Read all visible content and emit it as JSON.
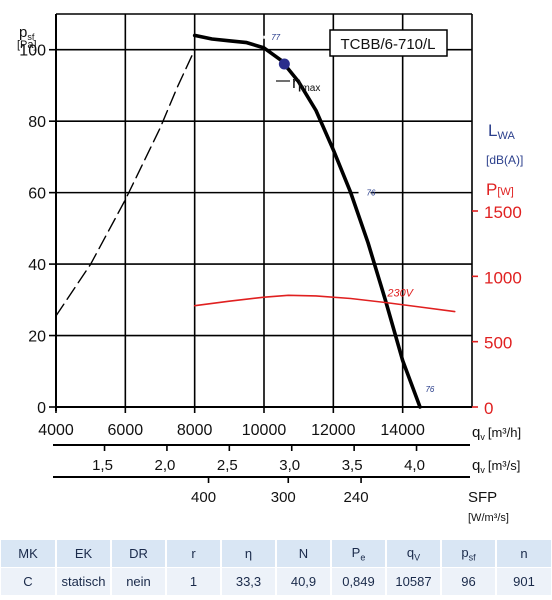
{
  "chart_data": {
    "type": "line",
    "title": "TCBB/6-710/L",
    "y_axis_left": {
      "symbol": "p",
      "subscript": "sf",
      "unit": "[Pa]",
      "ticks": [
        0,
        20,
        40,
        60,
        80,
        100
      ],
      "ylim": [
        0,
        110
      ]
    },
    "y_axis_right_sound": {
      "label": "L",
      "subscript": "WA",
      "unit": "[dB(A)]"
    },
    "y_axis_right_power": {
      "label": "P",
      "unit": "[W]",
      "ticks": [
        0,
        500,
        1000,
        1500
      ],
      "color": "#e02020"
    },
    "x_axis_flow_m3h": {
      "symbol": "q",
      "subscript": "v",
      "unit": "[m³/h]",
      "ticks": [
        4000,
        6000,
        8000,
        10000,
        12000,
        14000
      ],
      "xlim": [
        4000,
        16000
      ]
    },
    "x_axis_flow_m3s": {
      "symbol": "q",
      "subscript": "v",
      "unit": "[m³/s]",
      "ticks": [
        "1,5",
        "2,0",
        "2,5",
        "3,0",
        "3,5",
        "4,0"
      ],
      "values": [
        1.5,
        2.0,
        2.5,
        3.0,
        3.5,
        4.0
      ]
    },
    "x_axis_sfp": {
      "label": "SFP",
      "unit": "[W/m³/s]",
      "ticks": [
        "400",
        "300",
        "240"
      ],
      "at_flow_m3h": [
        8400,
        10700,
        12800
      ]
    },
    "series": [
      {
        "kind": "pressure-unstable",
        "style": "dashed",
        "color": "#000000",
        "x": [
          4000,
          5000,
          6000,
          7000,
          7500,
          8000
        ],
        "y": [
          25.5,
          40,
          58,
          78,
          89.5,
          100
        ]
      },
      {
        "kind": "pressure",
        "style": "solid",
        "color": "#000000",
        "x": [
          8000,
          8500,
          9000,
          9500,
          10000,
          10500,
          11000,
          11500,
          12000,
          12500,
          13000,
          13500,
          14000,
          14500
        ],
        "y": [
          104,
          103,
          102.5,
          102,
          100.5,
          97,
          91,
          83,
          72,
          60,
          46,
          30,
          13,
          0
        ]
      },
      {
        "name": "230V",
        "kind": "power",
        "style": "solid",
        "color": "#e02020",
        "x": [
          8000,
          9000,
          10000,
          10700,
          11500,
          12500,
          13500,
          14500,
          15500
        ],
        "y": [
          775,
          810,
          840,
          855,
          850,
          830,
          800,
          765,
          730
        ]
      }
    ],
    "eta_max": {
      "label": "η",
      "sub": "max",
      "x": 10587,
      "y": 96,
      "color": "#2b2e8c"
    },
    "sound_labels": [
      {
        "text": "77",
        "x": 10150,
        "y": 103.5
      },
      {
        "text": "76",
        "x": 12900,
        "y": 60
      },
      {
        "text": "76",
        "x": 14600,
        "y": 5
      }
    ],
    "grid": true
  },
  "table": {
    "headers": [
      {
        "main": "MK",
        "sub": ""
      },
      {
        "main": "EK",
        "sub": ""
      },
      {
        "main": "DR",
        "sub": ""
      },
      {
        "main": "r",
        "sub": ""
      },
      {
        "main": "η",
        "sub": ""
      },
      {
        "main": "N",
        "sub": ""
      },
      {
        "main": "P",
        "sub": "e"
      },
      {
        "main": "q",
        "sub": "V"
      },
      {
        "main": "p",
        "sub": "sf"
      },
      {
        "main": "n",
        "sub": ""
      }
    ],
    "values": [
      "C",
      "statisch",
      "nein",
      "1",
      "33,3",
      "40,9",
      "0,849",
      "10587",
      "96",
      "901"
    ]
  }
}
